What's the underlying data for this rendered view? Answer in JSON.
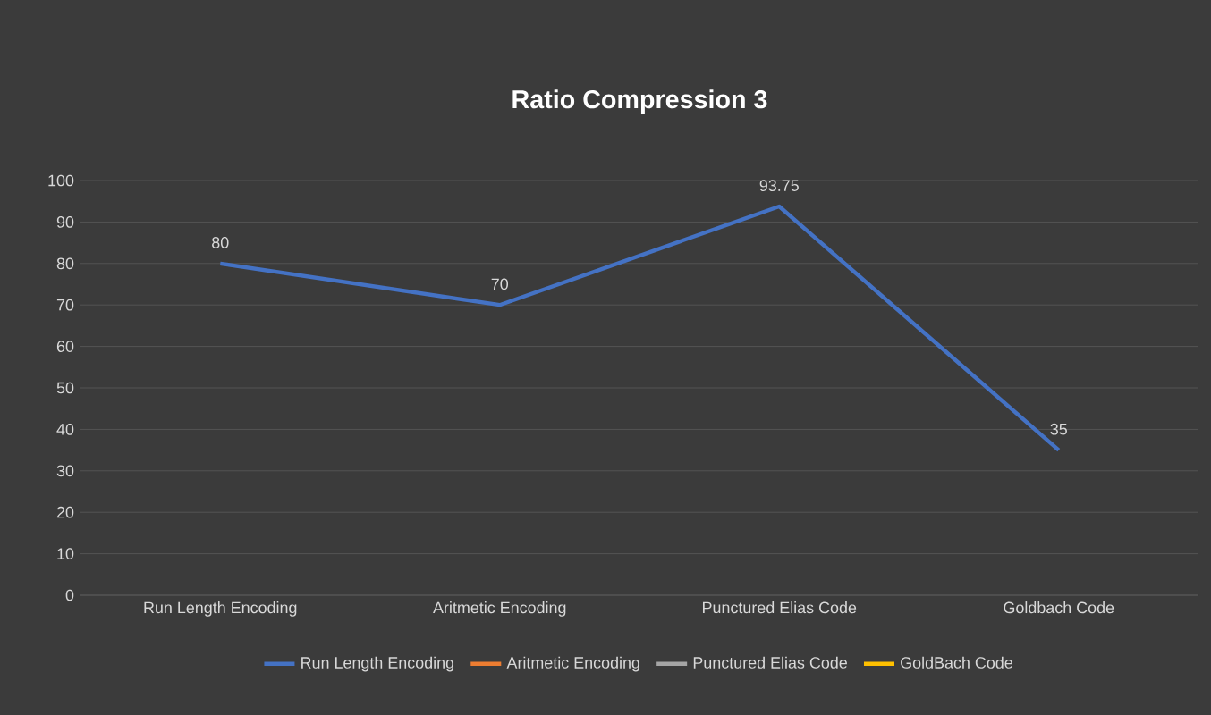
{
  "chart_data": {
    "type": "line",
    "title": "Ratio Compression 3",
    "categories": [
      "Run Length Encoding",
      "Aritmetic Encoding",
      "Punctured Elias Code",
      "Goldbach Code"
    ],
    "series": [
      {
        "name": "Run Length Encoding",
        "color": "#4472c4",
        "values": [
          80,
          70,
          93.75,
          35
        ]
      },
      {
        "name": "Aritmetic Encoding",
        "color": "#ed7d31",
        "values": [
          null,
          null,
          null,
          null
        ]
      },
      {
        "name": "Punctured Elias Code",
        "color": "#a5a5a5",
        "values": [
          null,
          null,
          null,
          null
        ]
      },
      {
        "name": "GoldBach Code",
        "color": "#ffc000",
        "values": [
          null,
          null,
          null,
          null
        ]
      }
    ],
    "ylim": [
      0,
      100
    ],
    "yticks": [
      0,
      10,
      20,
      30,
      40,
      50,
      60,
      70,
      80,
      90,
      100
    ],
    "grid": "y",
    "legend": "bottom",
    "marker": "none",
    "line_style": "solid",
    "data_labels": true
  }
}
